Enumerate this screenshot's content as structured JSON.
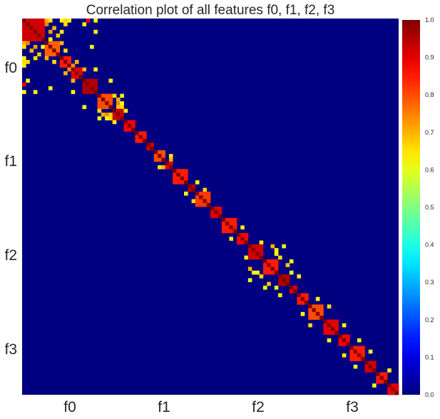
{
  "chart_data": {
    "type": "heatmap",
    "title": "Correlation plot of all features f0, f1, f2, f3",
    "xlabel": "",
    "ylabel": "",
    "n_features": 100,
    "x_tick_labels": [
      "f0",
      "f1",
      "f2",
      "f3"
    ],
    "y_tick_labels": [
      "f0",
      "f1",
      "f2",
      "f3"
    ],
    "colormap": "jet",
    "background_value": 0.0,
    "value_range": [
      0.0,
      1.0
    ],
    "colorbar_ticks": [
      "0.0",
      "0.1",
      "0.2",
      "0.3",
      "0.4",
      "0.5",
      "0.6",
      "0.7",
      "0.8",
      "0.9",
      "1.0"
    ],
    "diagonal_value": 1.0,
    "blocks": [
      {
        "start": 0,
        "size": 6,
        "offdiag": 0.92
      },
      {
        "start": 6,
        "size": 4,
        "offdiag": 0.78
      },
      {
        "start": 10,
        "size": 3,
        "offdiag": 0.85
      },
      {
        "start": 13,
        "size": 3,
        "offdiag": 0.9
      },
      {
        "start": 16,
        "size": 4,
        "offdiag": 0.95
      },
      {
        "start": 20,
        "size": 4,
        "offdiag": 0.8
      },
      {
        "start": 24,
        "size": 3,
        "offdiag": 0.93
      },
      {
        "start": 27,
        "size": 3,
        "offdiag": 0.88
      },
      {
        "start": 30,
        "size": 3,
        "offdiag": 0.85
      },
      {
        "start": 33,
        "size": 2,
        "offdiag": 0.92
      },
      {
        "start": 35,
        "size": 3,
        "offdiag": 0.8
      },
      {
        "start": 38,
        "size": 2,
        "offdiag": 0.9
      },
      {
        "start": 40,
        "size": 4,
        "offdiag": 0.85
      },
      {
        "start": 44,
        "size": 2,
        "offdiag": 0.95
      },
      {
        "start": 46,
        "size": 4,
        "offdiag": 0.82
      },
      {
        "start": 50,
        "size": 3,
        "offdiag": 0.9
      },
      {
        "start": 53,
        "size": 4,
        "offdiag": 0.85
      },
      {
        "start": 57,
        "size": 3,
        "offdiag": 0.88
      },
      {
        "start": 60,
        "size": 4,
        "offdiag": 0.92
      },
      {
        "start": 64,
        "size": 4,
        "offdiag": 0.85
      },
      {
        "start": 68,
        "size": 3,
        "offdiag": 0.95
      },
      {
        "start": 71,
        "size": 2,
        "offdiag": 0.9
      },
      {
        "start": 73,
        "size": 3,
        "offdiag": 0.85
      },
      {
        "start": 76,
        "size": 4,
        "offdiag": 0.8
      },
      {
        "start": 80,
        "size": 4,
        "offdiag": 0.9
      },
      {
        "start": 84,
        "size": 3,
        "offdiag": 0.88
      },
      {
        "start": 87,
        "size": 4,
        "offdiag": 0.85
      },
      {
        "start": 91,
        "size": 3,
        "offdiag": 0.92
      },
      {
        "start": 94,
        "size": 3,
        "offdiag": 0.85
      },
      {
        "start": 97,
        "size": 3,
        "offdiag": 0.9
      }
    ],
    "extra_cells": [
      {
        "i": 0,
        "j": 6,
        "v": 0.7
      },
      {
        "i": 0,
        "j": 7,
        "v": 0.65
      },
      {
        "i": 0,
        "j": 10,
        "v": 0.62
      },
      {
        "i": 0,
        "j": 12,
        "v": 0.64
      },
      {
        "i": 0,
        "j": 17,
        "v": 0.9
      },
      {
        "i": 1,
        "j": 6,
        "v": 0.75
      },
      {
        "i": 1,
        "j": 11,
        "v": 0.66
      },
      {
        "i": 2,
        "j": 8,
        "v": 0.7
      },
      {
        "i": 3,
        "j": 7,
        "v": 0.72
      },
      {
        "i": 3,
        "j": 10,
        "v": 0.65
      },
      {
        "i": 4,
        "j": 9,
        "v": 0.68
      },
      {
        "i": 5,
        "j": 7,
        "v": 0.62
      },
      {
        "i": 6,
        "j": 10,
        "v": 0.7
      },
      {
        "i": 8,
        "j": 11,
        "v": 0.66
      },
      {
        "i": 1,
        "j": 16,
        "v": 0.63
      },
      {
        "i": 0,
        "j": 11,
        "v": 0.66
      },
      {
        "i": 11,
        "j": 14,
        "v": 0.7
      },
      {
        "i": 0,
        "j": 19,
        "v": 0.62
      },
      {
        "i": 3,
        "j": 19,
        "v": 0.64
      },
      {
        "i": 7,
        "j": 18,
        "v": 0.6
      },
      {
        "i": 12,
        "j": 13,
        "v": 0.74
      },
      {
        "i": 13,
        "j": 16,
        "v": 0.7
      },
      {
        "i": 20,
        "j": 24,
        "v": 0.66
      },
      {
        "i": 21,
        "j": 25,
        "v": 0.7
      },
      {
        "i": 22,
        "j": 25,
        "v": 0.75
      },
      {
        "i": 22,
        "j": 26,
        "v": 0.62
      },
      {
        "i": 23,
        "j": 25,
        "v": 0.68
      },
      {
        "i": 20,
        "j": 26,
        "v": 0.6
      },
      {
        "i": 24,
        "j": 27,
        "v": 0.64
      },
      {
        "i": 13,
        "j": 19,
        "v": 0.63
      },
      {
        "i": 16,
        "j": 23,
        "v": 0.62
      },
      {
        "i": 23,
        "j": 26,
        "v": 0.66
      },
      {
        "i": 36,
        "j": 39,
        "v": 0.65
      },
      {
        "i": 37,
        "j": 39,
        "v": 0.7
      },
      {
        "i": 43,
        "j": 46,
        "v": 0.62
      },
      {
        "i": 45,
        "j": 48,
        "v": 0.66
      },
      {
        "i": 55,
        "j": 58,
        "v": 0.64
      },
      {
        "i": 59,
        "j": 63,
        "v": 0.62
      },
      {
        "i": 60,
        "j": 66,
        "v": 0.7
      },
      {
        "i": 61,
        "j": 67,
        "v": 0.64
      },
      {
        "i": 62,
        "j": 67,
        "v": 0.62
      },
      {
        "i": 60,
        "j": 69,
        "v": 0.6
      },
      {
        "i": 63,
        "j": 68,
        "v": 0.66
      },
      {
        "i": 64,
        "j": 71,
        "v": 0.62
      },
      {
        "i": 65,
        "j": 70,
        "v": 0.68
      },
      {
        "i": 67,
        "j": 71,
        "v": 0.6
      },
      {
        "i": 68,
        "j": 73,
        "v": 0.64
      },
      {
        "i": 74,
        "j": 78,
        "v": 0.62
      },
      {
        "i": 76,
        "j": 81,
        "v": 0.66
      },
      {
        "i": 81,
        "j": 85,
        "v": 0.62
      },
      {
        "i": 85,
        "j": 89,
        "v": 0.64
      },
      {
        "i": 88,
        "j": 92,
        "v": 0.6
      },
      {
        "i": 93,
        "j": 97,
        "v": 0.62
      }
    ]
  }
}
